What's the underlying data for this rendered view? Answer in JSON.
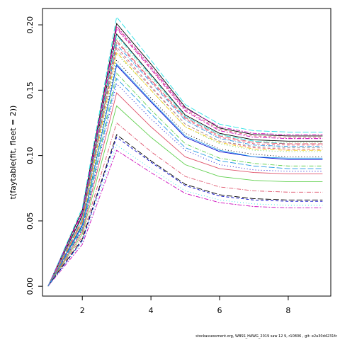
{
  "chart_data": {
    "type": "line",
    "title": "",
    "xlabel": "",
    "ylabel": "t(faytable(fit, fleet = 2))",
    "xlim": [
      0.84,
      9.24
    ],
    "ylim": [
      -0.0075,
      0.2125
    ],
    "x_ticks": [
      "2",
      "4",
      "6",
      "8"
    ],
    "y_ticks": [
      "0.00",
      "0.05",
      "0.10",
      "0.15",
      "0.20"
    ],
    "x_tick_values": [
      2,
      4,
      6,
      8
    ],
    "y_tick_values": [
      0.0,
      0.05,
      0.1,
      0.15,
      0.2
    ],
    "x": [
      1,
      2,
      3,
      4,
      5,
      6,
      7,
      8,
      9
    ],
    "grid": false,
    "legend": "none",
    "series": [
      {
        "color": "#000000",
        "dash": "solid",
        "values": [
          0.0,
          0.058,
          0.201,
          0.17,
          0.137,
          0.121,
          0.116,
          0.115,
          0.115
        ]
      },
      {
        "color": "#DF536B",
        "dash": "4 3",
        "values": [
          0.0,
          0.055,
          0.198,
          0.167,
          0.135,
          0.12,
          0.115,
          0.114,
          0.114
        ]
      },
      {
        "color": "#61D04F",
        "dash": "1 3",
        "values": [
          0.0,
          0.052,
          0.19,
          0.16,
          0.13,
          0.116,
          0.111,
          0.11,
          0.11
        ]
      },
      {
        "color": "#2297E6",
        "dash": "6 2 1 2",
        "values": [
          0.0,
          0.05,
          0.185,
          0.156,
          0.127,
          0.113,
          0.108,
          0.107,
          0.107
        ]
      },
      {
        "color": "#28E2E5",
        "dash": "8 3",
        "values": [
          0.0,
          0.06,
          0.206,
          0.173,
          0.139,
          0.124,
          0.119,
          0.118,
          0.118
        ]
      },
      {
        "color": "#CD0BBC",
        "dash": "6 2 2 2",
        "values": [
          0.0,
          0.057,
          0.199,
          0.168,
          0.136,
          0.122,
          0.117,
          0.116,
          0.116
        ]
      },
      {
        "color": "#000000",
        "dash": "solid",
        "values": [
          0.0,
          0.054,
          0.193,
          0.162,
          0.131,
          0.117,
          0.112,
          0.111,
          0.111
        ]
      },
      {
        "color": "#DF536B",
        "dash": "4 3",
        "values": [
          0.0,
          0.051,
          0.187,
          0.157,
          0.128,
          0.114,
          0.109,
          0.108,
          0.108
        ]
      },
      {
        "color": "#61D04F",
        "dash": "1 3",
        "values": [
          0.0,
          0.048,
          0.178,
          0.15,
          0.122,
          0.109,
          0.104,
          0.103,
          0.103
        ]
      },
      {
        "color": "#0000CD",
        "dash": "solid",
        "values": [
          0.0,
          0.047,
          0.169,
          0.141,
          0.114,
          0.103,
          0.099,
          0.097,
          0.097
        ]
      },
      {
        "color": "#28E2E5",
        "dash": "8 3",
        "values": [
          0.0,
          0.053,
          0.192,
          0.161,
          0.13,
          0.116,
          0.111,
          0.109,
          0.109
        ]
      },
      {
        "color": "#CD0BBC",
        "dash": "6 2 2 2",
        "values": [
          0.0,
          0.056,
          0.197,
          0.166,
          0.134,
          0.119,
          0.114,
          0.113,
          0.113
        ]
      },
      {
        "color": "#DF536B",
        "dash": "4 3",
        "values": [
          0.0,
          0.049,
          0.183,
          0.153,
          0.124,
          0.111,
          0.106,
          0.105,
          0.105
        ]
      },
      {
        "color": "#000000",
        "dash": "1 3",
        "values": [
          0.0,
          0.046,
          0.173,
          0.144,
          0.117,
          0.105,
          0.101,
          0.099,
          0.099
        ]
      },
      {
        "color": "#61D04F",
        "dash": "6 2 1 2",
        "values": [
          0.0,
          0.045,
          0.163,
          0.135,
          0.109,
          0.098,
          0.094,
          0.092,
          0.092
        ]
      },
      {
        "color": "#2297E6",
        "dash": "8 3",
        "values": [
          0.0,
          0.044,
          0.159,
          0.132,
          0.106,
          0.096,
          0.092,
          0.09,
          0.09
        ]
      },
      {
        "color": "#0000CD",
        "dash": "1 3",
        "values": [
          0.0,
          0.043,
          0.155,
          0.128,
          0.104,
          0.093,
          0.089,
          0.088,
          0.088
        ]
      },
      {
        "color": "#DF536B",
        "dash": "solid",
        "values": [
          0.0,
          0.042,
          0.148,
          0.122,
          0.099,
          0.09,
          0.087,
          0.086,
          0.086
        ]
      },
      {
        "color": "#61D04F",
        "dash": "solid",
        "values": [
          0.0,
          0.04,
          0.138,
          0.114,
          0.093,
          0.084,
          0.081,
          0.08,
          0.08
        ]
      },
      {
        "color": "#DF536B",
        "dash": "6 2 1 2",
        "values": [
          0.0,
          0.038,
          0.125,
          0.103,
          0.084,
          0.076,
          0.073,
          0.072,
          0.072
        ]
      },
      {
        "color": "#000000",
        "dash": "8 3",
        "values": [
          0.0,
          0.036,
          0.116,
          0.096,
          0.078,
          0.07,
          0.067,
          0.066,
          0.066
        ]
      },
      {
        "color": "#0000CD",
        "dash": "4 3",
        "values": [
          0.0,
          0.035,
          0.114,
          0.095,
          0.077,
          0.069,
          0.066,
          0.065,
          0.065
        ]
      },
      {
        "color": "#CD0BBC",
        "dash": "6 2 2 2",
        "values": [
          0.0,
          0.032,
          0.104,
          0.087,
          0.071,
          0.064,
          0.061,
          0.06,
          0.06
        ]
      },
      {
        "color": "#28E2E5",
        "dash": "1 3",
        "values": [
          0.0,
          0.034,
          0.108,
          0.09,
          0.073,
          0.066,
          0.063,
          0.062,
          0.062
        ]
      },
      {
        "color": "#9E9E9E",
        "dash": "4 3",
        "values": [
          0.0,
          0.05,
          0.181,
          0.152,
          0.124,
          0.111,
          0.107,
          0.106,
          0.106
        ]
      },
      {
        "color": "#F5C710",
        "dash": "6 2 1 2",
        "values": [
          0.0,
          0.049,
          0.179,
          0.15,
          0.122,
          0.11,
          0.105,
          0.104,
          0.104
        ]
      },
      {
        "color": "#DF536B",
        "dash": "8 3",
        "values": [
          0.0,
          0.051,
          0.188,
          0.158,
          0.129,
          0.115,
          0.11,
          0.109,
          0.109
        ]
      },
      {
        "color": "#2297E6",
        "dash": "solid",
        "values": [
          0.0,
          0.046,
          0.17,
          0.142,
          0.115,
          0.104,
          0.099,
          0.098,
          0.098
        ]
      }
    ]
  },
  "footer": {
    "text": "stockassessment.org,  WBSS_HAWG_2019  saw  12  9,  r10806 ,  git:  e2a30d4231fc"
  }
}
